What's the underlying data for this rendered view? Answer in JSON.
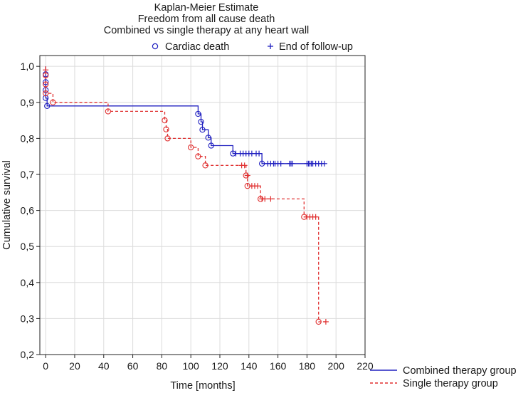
{
  "chart_data": {
    "type": "line",
    "title": [
      "Kaplan-Meier Estimate",
      "Freedom from all cause death",
      "Combined vs single therapy at any heart wall"
    ],
    "xlabel": "Time [months]",
    "ylabel": "Cumulative survival",
    "xlim": [
      -4,
      220
    ],
    "ylim": [
      0.2,
      1.03
    ],
    "xticks": [
      "0",
      "20",
      "40",
      "60",
      "80",
      "100",
      "120",
      "140",
      "160",
      "180",
      "200",
      "220"
    ],
    "xtick_values": [
      0,
      20,
      40,
      60,
      80,
      100,
      120,
      140,
      160,
      180,
      200,
      220
    ],
    "yticks": [
      "0,2",
      "0,3",
      "0,4",
      "0,5",
      "0,6",
      "0,7",
      "0,8",
      "0,9",
      "1,0"
    ],
    "ytick_values": [
      0.2,
      0.3,
      0.4,
      0.5,
      0.6,
      0.7,
      0.8,
      0.9,
      1.0
    ],
    "grid": true,
    "marker_legend": [
      {
        "symbol": "o",
        "label": "Cardiac death"
      },
      {
        "symbol": "+",
        "label": "End of follow-up"
      }
    ],
    "series": [
      {
        "name": "Combined therapy group",
        "color": "#2020c0",
        "style": "solid",
        "steps": [
          [
            0,
            1.0
          ],
          [
            0,
            0.978
          ],
          [
            0,
            0.956
          ],
          [
            0,
            0.934
          ],
          [
            0,
            0.912
          ],
          [
            1,
            0.89
          ],
          [
            105,
            0.868
          ],
          [
            107,
            0.846
          ],
          [
            108,
            0.824
          ],
          [
            112,
            0.802
          ],
          [
            114,
            0.78
          ],
          [
            129,
            0.758
          ],
          [
            149,
            0.73
          ],
          [
            192,
            0.73
          ]
        ],
        "events": [
          [
            0,
            0.978
          ],
          [
            0,
            0.956
          ],
          [
            0,
            0.934
          ],
          [
            0,
            0.912
          ],
          [
            1,
            0.89
          ],
          [
            105,
            0.868
          ],
          [
            107,
            0.846
          ],
          [
            108,
            0.824
          ],
          [
            112,
            0.802
          ],
          [
            114,
            0.78
          ],
          [
            129,
            0.758
          ],
          [
            149,
            0.73
          ]
        ],
        "censored": [
          [
            131,
            0.758
          ],
          [
            134,
            0.758
          ],
          [
            136,
            0.758
          ],
          [
            138,
            0.758
          ],
          [
            140,
            0.758
          ],
          [
            142,
            0.758
          ],
          [
            145,
            0.758
          ],
          [
            147,
            0.758
          ],
          [
            153,
            0.73
          ],
          [
            155,
            0.73
          ],
          [
            157,
            0.73
          ],
          [
            158,
            0.73
          ],
          [
            160,
            0.73
          ],
          [
            162,
            0.73
          ],
          [
            168,
            0.73
          ],
          [
            169,
            0.73
          ],
          [
            170,
            0.73
          ],
          [
            180,
            0.73
          ],
          [
            181,
            0.73
          ],
          [
            182,
            0.73
          ],
          [
            183,
            0.73
          ],
          [
            184,
            0.73
          ],
          [
            186,
            0.73
          ],
          [
            188,
            0.73
          ],
          [
            190,
            0.73
          ],
          [
            192,
            0.73
          ]
        ]
      },
      {
        "name": "Single therapy group",
        "color": "#e03030",
        "style": "dashed",
        "steps": [
          [
            0,
            1.0
          ],
          [
            0,
            0.975
          ],
          [
            0,
            0.95
          ],
          [
            0,
            0.925
          ],
          [
            5,
            0.9
          ],
          [
            43,
            0.875
          ],
          [
            82,
            0.85
          ],
          [
            83,
            0.825
          ],
          [
            84,
            0.8
          ],
          [
            100,
            0.775
          ],
          [
            105,
            0.75
          ],
          [
            110,
            0.725
          ],
          [
            138,
            0.697
          ],
          [
            139,
            0.668
          ],
          [
            148,
            0.632
          ],
          [
            178,
            0.582
          ],
          [
            188,
            0.291
          ],
          [
            193,
            0.291
          ]
        ],
        "events": [
          [
            0,
            0.975
          ],
          [
            0,
            0.95
          ],
          [
            0,
            0.925
          ],
          [
            5,
            0.9
          ],
          [
            43,
            0.875
          ],
          [
            82,
            0.85
          ],
          [
            83,
            0.825
          ],
          [
            84,
            0.8
          ],
          [
            100,
            0.775
          ],
          [
            105,
            0.75
          ],
          [
            110,
            0.725
          ],
          [
            138,
            0.697
          ],
          [
            139,
            0.668
          ],
          [
            148,
            0.632
          ],
          [
            178,
            0.582
          ],
          [
            188,
            0.291
          ]
        ],
        "censored": [
          [
            0,
            0.99
          ],
          [
            135,
            0.725
          ],
          [
            137,
            0.725
          ],
          [
            139,
            0.697
          ],
          [
            142,
            0.668
          ],
          [
            144,
            0.668
          ],
          [
            146,
            0.668
          ],
          [
            149,
            0.632
          ],
          [
            151,
            0.632
          ],
          [
            155,
            0.632
          ],
          [
            180,
            0.582
          ],
          [
            182,
            0.582
          ],
          [
            184,
            0.582
          ],
          [
            186,
            0.582
          ],
          [
            193,
            0.291
          ]
        ]
      }
    ]
  }
}
